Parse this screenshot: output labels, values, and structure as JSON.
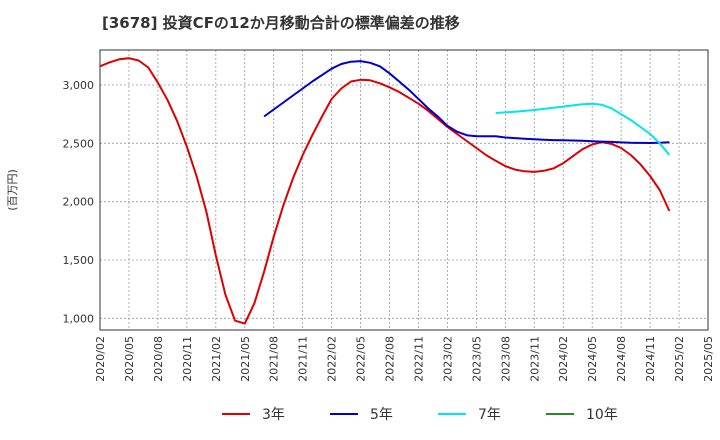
{
  "chart_data": {
    "type": "line",
    "title": "[3678]  投資CFの12か月移動合計の標準偏差の推移",
    "ylabel": "(百万円)",
    "xlabel": "",
    "ylim": [
      900,
      3300
    ],
    "y_ticks": [
      1000,
      1500,
      2000,
      2500,
      3000
    ],
    "y_tick_labels": [
      "1,000",
      "1,500",
      "2,000",
      "2,500",
      "3,000"
    ],
    "x_range": [
      "2020-02",
      "2025-05"
    ],
    "x_tick_labels": [
      "2020/02",
      "2020/05",
      "2020/08",
      "2020/11",
      "2021/02",
      "2021/05",
      "2021/08",
      "2021/11",
      "2022/02",
      "2022/05",
      "2022/08",
      "2022/11",
      "2023/02",
      "2023/05",
      "2023/08",
      "2023/11",
      "2024/02",
      "2024/05",
      "2024/08",
      "2024/11",
      "2025/02",
      "2025/05"
    ],
    "grid": true,
    "legend_position": "bottom",
    "series": [
      {
        "name": "3年",
        "color": "#dd0000",
        "points": [
          [
            "2020-02",
            3160
          ],
          [
            "2020-03",
            3195
          ],
          [
            "2020-04",
            3220
          ],
          [
            "2020-05",
            3230
          ],
          [
            "2020-06",
            3210
          ],
          [
            "2020-07",
            3150
          ],
          [
            "2020-08",
            3020
          ],
          [
            "2020-09",
            2870
          ],
          [
            "2020-10",
            2690
          ],
          [
            "2020-11",
            2470
          ],
          [
            "2020-12",
            2220
          ],
          [
            "2021-01",
            1920
          ],
          [
            "2021-02",
            1540
          ],
          [
            "2021-03",
            1200
          ],
          [
            "2021-04",
            980
          ],
          [
            "2021-05",
            955
          ],
          [
            "2021-06",
            1130
          ],
          [
            "2021-07",
            1400
          ],
          [
            "2021-08",
            1700
          ],
          [
            "2021-09",
            1970
          ],
          [
            "2021-10",
            2200
          ],
          [
            "2021-11",
            2400
          ],
          [
            "2021-12",
            2570
          ],
          [
            "2022-01",
            2730
          ],
          [
            "2022-02",
            2880
          ],
          [
            "2022-03",
            2970
          ],
          [
            "2022-04",
            3030
          ],
          [
            "2022-05",
            3045
          ],
          [
            "2022-06",
            3040
          ],
          [
            "2022-07",
            3015
          ],
          [
            "2022-08",
            2980
          ],
          [
            "2022-09",
            2940
          ],
          [
            "2022-10",
            2890
          ],
          [
            "2022-11",
            2840
          ],
          [
            "2022-12",
            2780
          ],
          [
            "2023-01",
            2710
          ],
          [
            "2023-02",
            2640
          ],
          [
            "2023-03",
            2580
          ],
          [
            "2023-04",
            2520
          ],
          [
            "2023-05",
            2460
          ],
          [
            "2023-06",
            2400
          ],
          [
            "2023-07",
            2350
          ],
          [
            "2023-08",
            2305
          ],
          [
            "2023-09",
            2275
          ],
          [
            "2023-10",
            2260
          ],
          [
            "2023-11",
            2255
          ],
          [
            "2023-12",
            2265
          ],
          [
            "2024-01",
            2285
          ],
          [
            "2024-02",
            2330
          ],
          [
            "2024-03",
            2390
          ],
          [
            "2024-04",
            2450
          ],
          [
            "2024-05",
            2490
          ],
          [
            "2024-06",
            2510
          ],
          [
            "2024-07",
            2495
          ],
          [
            "2024-08",
            2460
          ],
          [
            "2024-09",
            2400
          ],
          [
            "2024-10",
            2320
          ],
          [
            "2024-11",
            2220
          ],
          [
            "2024-12",
            2100
          ],
          [
            "2025-01",
            1920
          ]
        ]
      },
      {
        "name": "5年",
        "color": "#0000cc",
        "points": [
          [
            "2021-07",
            2730
          ],
          [
            "2021-08",
            2790
          ],
          [
            "2021-09",
            2850
          ],
          [
            "2021-10",
            2910
          ],
          [
            "2021-11",
            2970
          ],
          [
            "2021-12",
            3030
          ],
          [
            "2022-01",
            3085
          ],
          [
            "2022-02",
            3140
          ],
          [
            "2022-03",
            3180
          ],
          [
            "2022-04",
            3200
          ],
          [
            "2022-05",
            3205
          ],
          [
            "2022-06",
            3190
          ],
          [
            "2022-07",
            3160
          ],
          [
            "2022-08",
            3100
          ],
          [
            "2022-09",
            3030
          ],
          [
            "2022-10",
            2960
          ],
          [
            "2022-11",
            2880
          ],
          [
            "2022-12",
            2800
          ],
          [
            "2023-01",
            2730
          ],
          [
            "2023-02",
            2650
          ],
          [
            "2023-03",
            2600
          ],
          [
            "2023-04",
            2570
          ],
          [
            "2023-05",
            2560
          ],
          [
            "2023-06",
            2560
          ],
          [
            "2023-07",
            2560
          ],
          [
            "2023-08",
            2550
          ],
          [
            "2023-09",
            2545
          ],
          [
            "2023-10",
            2540
          ],
          [
            "2023-11",
            2535
          ],
          [
            "2023-12",
            2530
          ],
          [
            "2024-01",
            2528
          ],
          [
            "2024-02",
            2526
          ],
          [
            "2024-03",
            2524
          ],
          [
            "2024-04",
            2522
          ],
          [
            "2024-05",
            2518
          ],
          [
            "2024-06",
            2515
          ],
          [
            "2024-07",
            2512
          ],
          [
            "2024-08",
            2508
          ],
          [
            "2024-09",
            2505
          ],
          [
            "2024-10",
            2504
          ],
          [
            "2024-11",
            2503
          ],
          [
            "2024-12",
            2505
          ],
          [
            "2025-01",
            2510
          ]
        ]
      },
      {
        "name": "7年",
        "color": "#00e5ee",
        "points": [
          [
            "2023-07",
            2760
          ],
          [
            "2023-08",
            2765
          ],
          [
            "2023-09",
            2770
          ],
          [
            "2023-10",
            2778
          ],
          [
            "2023-11",
            2786
          ],
          [
            "2023-12",
            2795
          ],
          [
            "2024-01",
            2805
          ],
          [
            "2024-02",
            2815
          ],
          [
            "2024-03",
            2825
          ],
          [
            "2024-04",
            2835
          ],
          [
            "2024-05",
            2840
          ],
          [
            "2024-06",
            2830
          ],
          [
            "2024-07",
            2800
          ],
          [
            "2024-08",
            2750
          ],
          [
            "2024-09",
            2700
          ],
          [
            "2024-10",
            2640
          ],
          [
            "2024-11",
            2580
          ],
          [
            "2024-12",
            2500
          ],
          [
            "2025-01",
            2400
          ]
        ]
      },
      {
        "name": "10年",
        "color": "#228b22",
        "points": []
      }
    ]
  }
}
